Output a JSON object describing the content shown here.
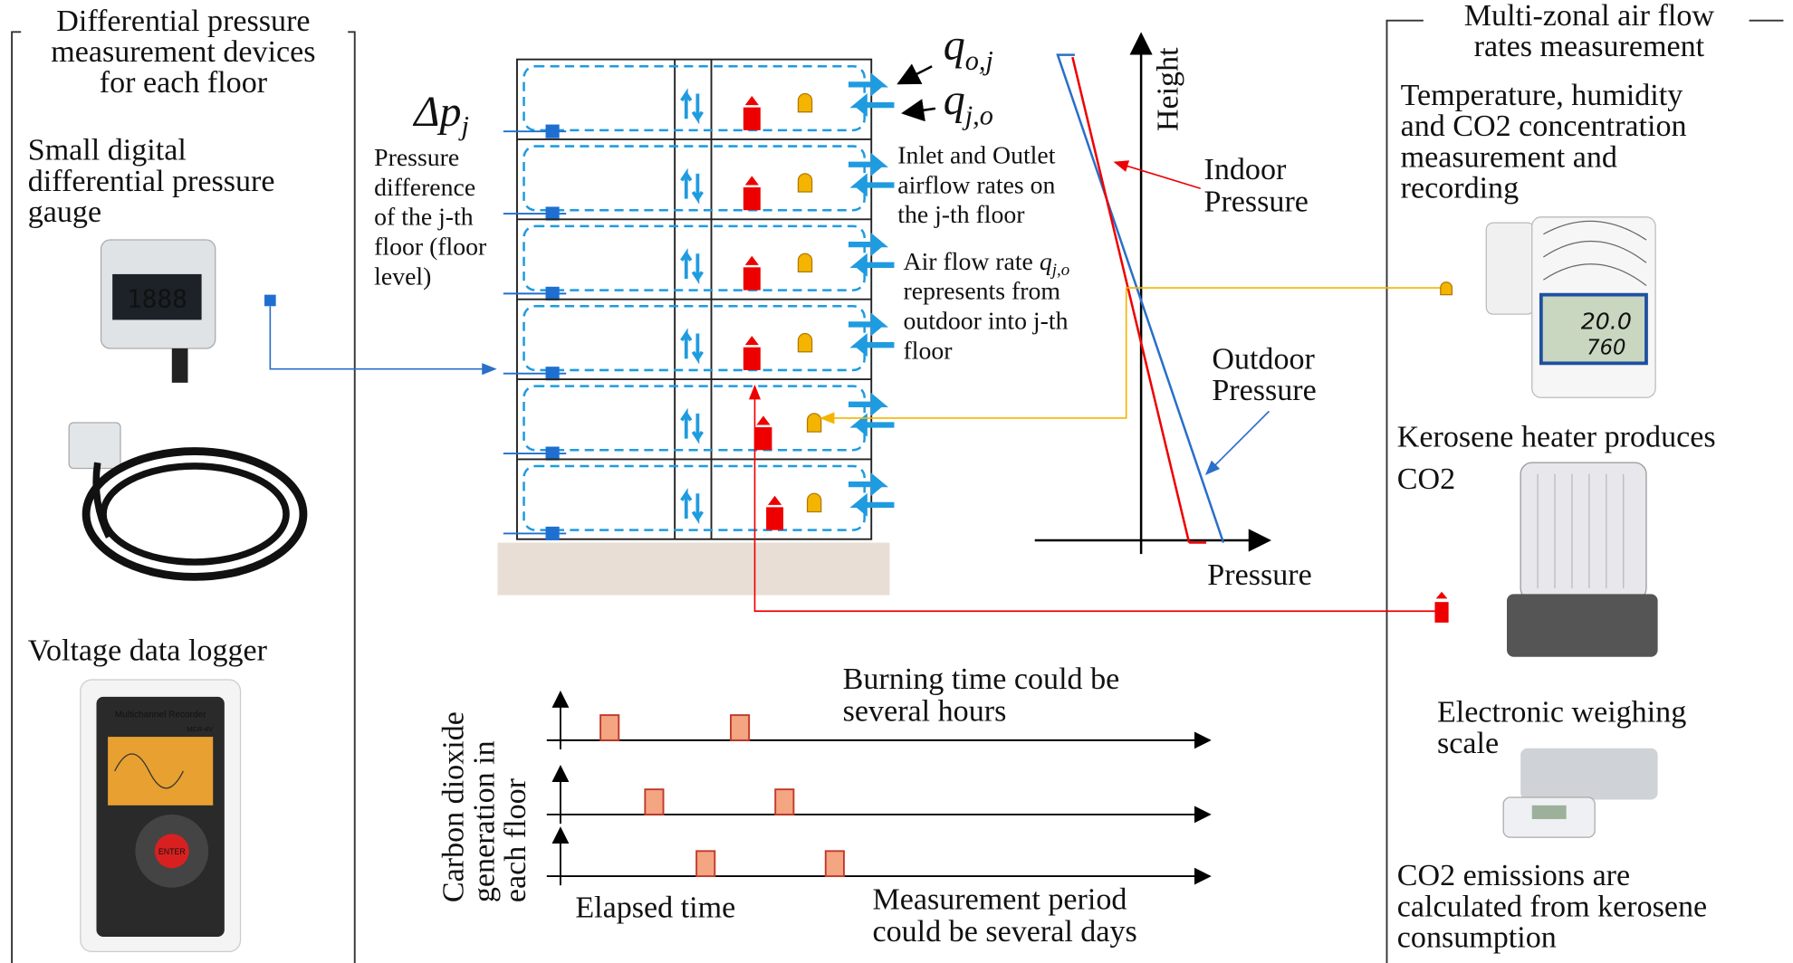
{
  "left_panel": {
    "title": [
      "Differential pressure",
      "measurement devices",
      "for each floor"
    ],
    "gauge": [
      "Small digital",
      "differential pressure",
      "gauge"
    ],
    "gauge_display": "1888",
    "logger": "Voltage data logger",
    "logger_device": [
      "Multichannel Recorder",
      "MCR-4V",
      "ENTER"
    ]
  },
  "right_panel": {
    "title": [
      "Multi-zonal air flow",
      "rates measurement"
    ],
    "sensor": [
      "Temperature, humidity",
      "and CO2 concentration",
      "measurement and",
      "recording"
    ],
    "sensor_display": [
      "20.0",
      "760"
    ],
    "heater": [
      "Kerosene heater produces",
      "CO2"
    ],
    "scale": [
      "Electronic weighing",
      "scale"
    ],
    "emissions": [
      "CO2 emissions are",
      "calculated from kerosene",
      "consumption"
    ]
  },
  "building": {
    "dp_symbol": "Δp",
    "dp_sub": "j",
    "q_out_symbol": "q",
    "q_out_sub": "o,j",
    "q_in_symbol": "q",
    "q_in_sub": "j,o",
    "dp_note": [
      "Pressure",
      "difference",
      "of the j-th",
      "floor (floor",
      "level)"
    ],
    "flow_note": [
      "Inlet and Outlet",
      "airflow rates on",
      "the j-th floor"
    ],
    "rate_note": {
      "prefix": "Air flow rate",
      "symbol": "q",
      "sub": "j,o",
      "lines": [
        "represents from",
        "outdoor into j-th",
        "floor"
      ]
    }
  },
  "pressure_graph": {
    "y_label": "Height",
    "x_label": "Pressure",
    "indoor": [
      "Indoor",
      "Pressure"
    ],
    "outdoor": [
      "Outdoor",
      "Pressure"
    ]
  },
  "timeline": {
    "y_label": [
      "Carbon dioxide",
      "generation in",
      "each floor"
    ],
    "burning": [
      "Burning time could be",
      "several hours"
    ],
    "elapsed": "Elapsed time",
    "period": [
      "Measurement period",
      "could be several days"
    ]
  }
}
